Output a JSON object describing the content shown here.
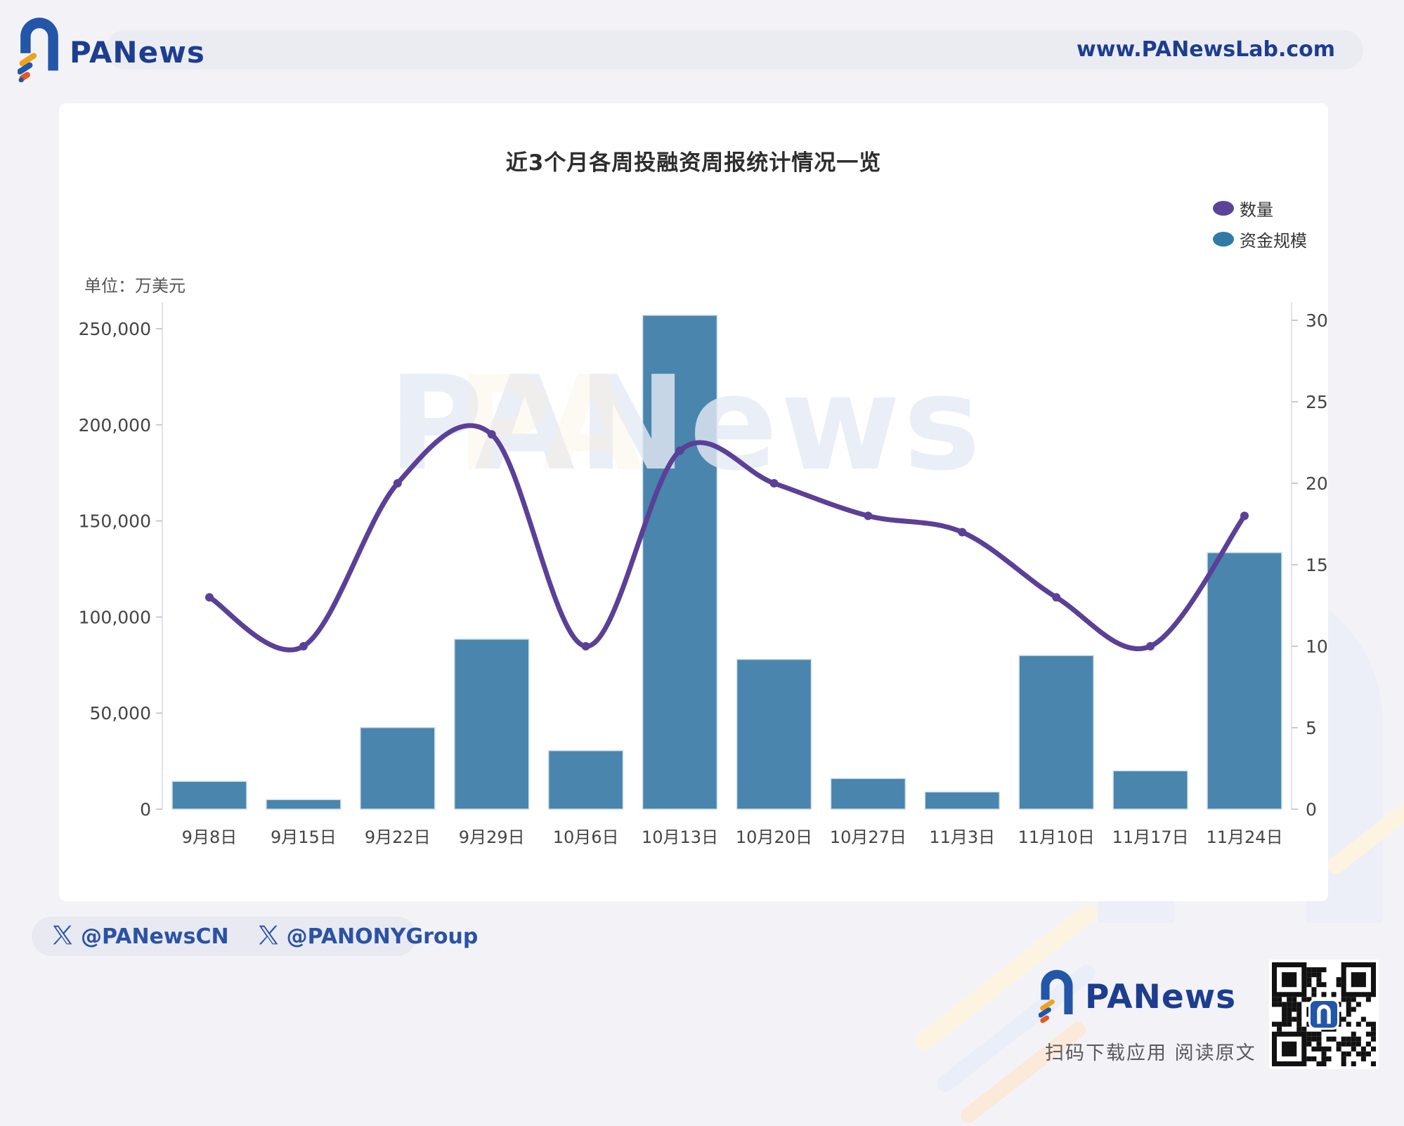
{
  "header": {
    "brand": "PANews",
    "url": "www.PANewsLab.com"
  },
  "chart": {
    "title": "近3个月各周投融资周报统计情况一览",
    "unit_label": "单位：万美元",
    "watermark": "PANews",
    "legend": [
      {
        "label": "数量",
        "color": "#5b4397"
      },
      {
        "label": "资金规模",
        "color": "#2f7ba6"
      }
    ]
  },
  "chart_data": {
    "type": "combo",
    "categories": [
      "9月8日",
      "9月15日",
      "9月22日",
      "9月29日",
      "10月6日",
      "10月13日",
      "10月20日",
      "10月27日",
      "11月3日",
      "11月10日",
      "11月17日",
      "11月24日"
    ],
    "series": [
      {
        "name": "数量",
        "type": "line",
        "y_axis": "right",
        "color": "#5a4096",
        "values": [
          13,
          10,
          20,
          23,
          10,
          22,
          20,
          18,
          17,
          13,
          10,
          18
        ]
      },
      {
        "name": "资金规模",
        "type": "bar",
        "y_axis": "left",
        "color": "#4a85ad",
        "values": [
          14500,
          5000,
          42500,
          88500,
          30500,
          257000,
          78000,
          16000,
          9000,
          80000,
          20000,
          133500
        ]
      }
    ],
    "left_axis": {
      "unit": "万美元",
      "min": 0,
      "max": 250000,
      "ticks": [
        0,
        50000,
        100000,
        150000,
        200000,
        250000
      ]
    },
    "right_axis": {
      "min": 0,
      "max": 30,
      "ticks": [
        0,
        5,
        10,
        15,
        20,
        25,
        30
      ]
    },
    "grid": false,
    "legend_position": "top-right",
    "title": "近3个月各周投融资周报统计情况一览"
  },
  "footer": {
    "handles": [
      {
        "label": "@PANewsCN"
      },
      {
        "label": "@PANONYGroup"
      }
    ],
    "brand": "PANews",
    "caption": "扫码下载应用  阅读原文"
  }
}
